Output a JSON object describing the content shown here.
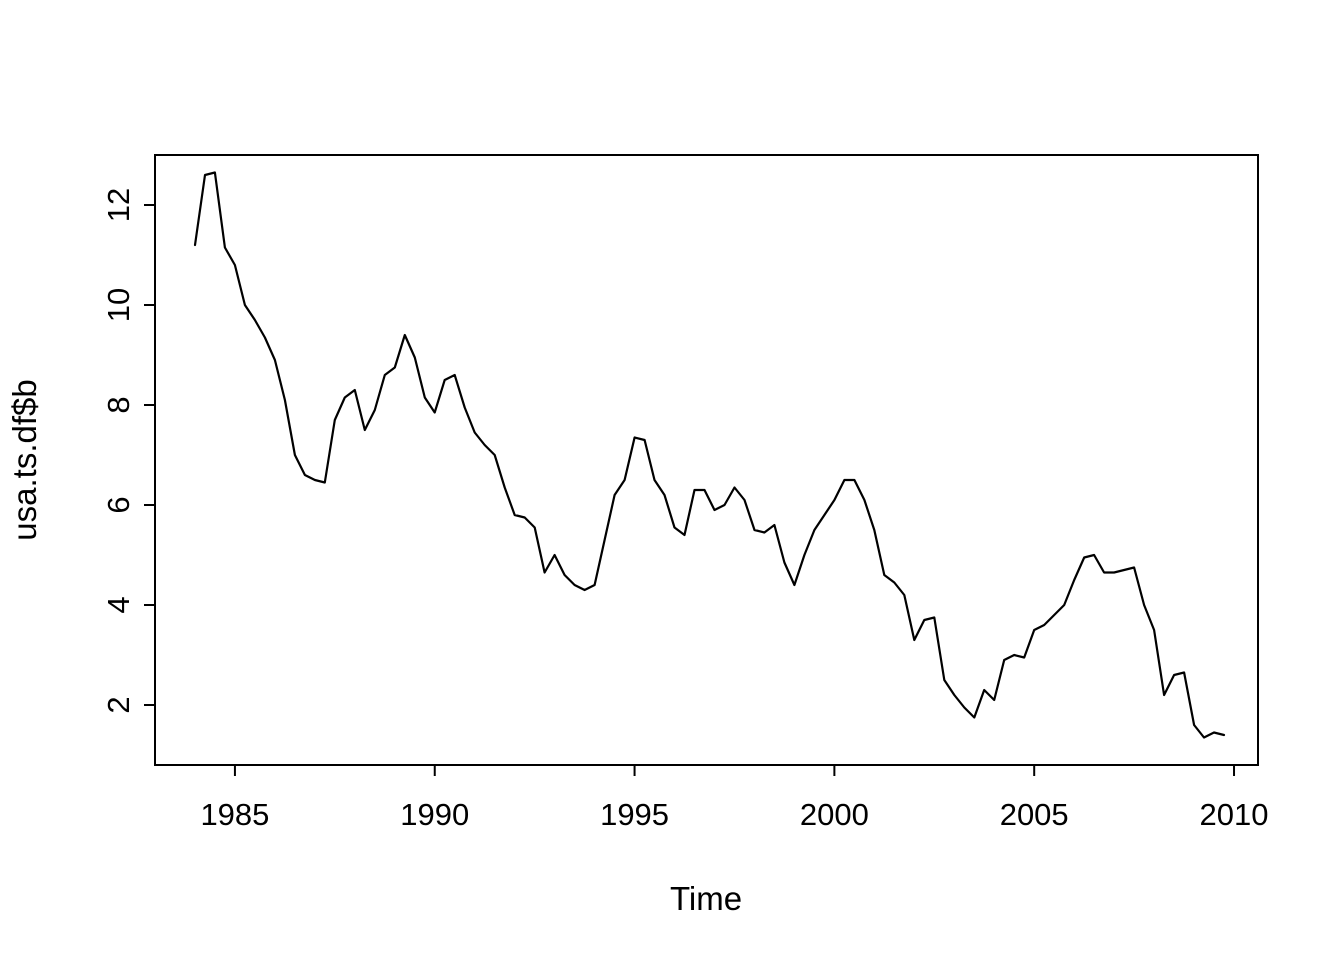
{
  "figure": {
    "background_color": "#ffffff",
    "foreground_color": "#000000"
  },
  "chart_data": {
    "type": "line",
    "title": "",
    "xlabel": "Time",
    "ylabel": "usa.ts.df$b",
    "line_color": "#000000",
    "grid": "off",
    "legend": "none",
    "frequency": "quarterly",
    "x_start": 1984.0,
    "x_step": 0.25,
    "n_points": 104,
    "xlim": [
      1983.0,
      2010.6
    ],
    "ylim": [
      0.8,
      13.0
    ],
    "x_ticks": [
      1985,
      1990,
      1995,
      2000,
      2005,
      2010
    ],
    "y_ticks": [
      2,
      4,
      6,
      8,
      10,
      12
    ],
    "values": [
      11.2,
      12.6,
      12.65,
      11.15,
      10.8,
      10.0,
      9.7,
      9.35,
      8.9,
      8.1,
      7.0,
      6.6,
      6.5,
      6.45,
      7.7,
      8.15,
      8.3,
      7.5,
      7.9,
      8.6,
      8.75,
      9.4,
      8.95,
      8.15,
      7.85,
      8.5,
      8.6,
      7.95,
      7.45,
      7.2,
      7.0,
      6.35,
      5.8,
      5.75,
      5.55,
      4.65,
      5.0,
      4.6,
      4.4,
      4.3,
      4.4,
      5.3,
      6.2,
      6.5,
      7.35,
      7.3,
      6.5,
      6.2,
      5.55,
      5.4,
      6.3,
      6.3,
      5.9,
      6.0,
      6.35,
      6.1,
      5.5,
      5.45,
      5.6,
      4.85,
      4.4,
      5.0,
      5.5,
      5.8,
      6.1,
      6.5,
      6.5,
      6.1,
      5.5,
      4.6,
      4.45,
      4.2,
      3.3,
      3.7,
      3.75,
      2.5,
      2.2,
      1.95,
      1.75,
      2.3,
      2.1,
      2.9,
      3.0,
      2.95,
      3.5,
      3.6,
      3.8,
      4.0,
      4.5,
      4.95,
      5.0,
      4.65,
      4.65,
      4.7,
      4.75,
      4.0,
      3.5,
      2.2,
      2.6,
      2.65,
      1.6,
      1.35,
      1.45,
      1.4
    ]
  }
}
